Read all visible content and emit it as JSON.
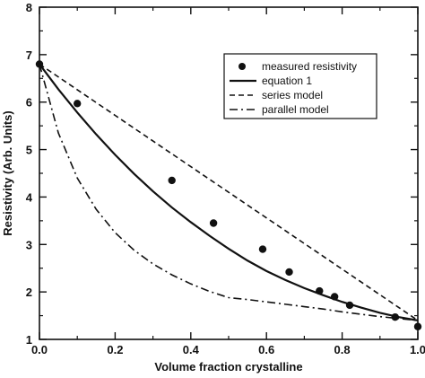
{
  "chart_data": {
    "type": "scatter",
    "title": "",
    "xlabel": "Volume fraction crystalline",
    "ylabel": "Resistivity (Arb. Units)",
    "xlim": [
      0.0,
      1.0
    ],
    "ylim": [
      1,
      8
    ],
    "xticks": [
      0.0,
      0.2,
      0.4,
      0.6,
      0.8,
      1.0
    ],
    "xtick_labels": [
      "0.0",
      "0.2",
      "0.4",
      "0.6",
      "0.8",
      "1.0"
    ],
    "yticks": [
      1,
      2,
      3,
      4,
      5,
      6,
      7,
      8
    ],
    "ytick_labels": [
      "1",
      "2",
      "3",
      "4",
      "5",
      "6",
      "7",
      "8"
    ],
    "grid": false,
    "legend_position": "top-right",
    "series": [
      {
        "name": "measured resistivity",
        "kind": "points",
        "marker": "filled-circle",
        "x": [
          0.0,
          0.1,
          0.35,
          0.46,
          0.59,
          0.66,
          0.74,
          0.78,
          0.82,
          0.94,
          1.0
        ],
        "y": [
          6.8,
          5.97,
          4.35,
          3.45,
          2.9,
          2.42,
          2.02,
          1.9,
          1.72,
          1.47,
          1.27
        ]
      },
      {
        "name": "equation 1",
        "kind": "line",
        "style": "solid",
        "x": [
          0.0,
          0.05,
          0.1,
          0.15,
          0.2,
          0.25,
          0.3,
          0.35,
          0.4,
          0.45,
          0.5,
          0.55,
          0.6,
          0.65,
          0.7,
          0.75,
          0.8,
          0.85,
          0.9,
          0.95,
          1.0
        ],
        "y": [
          6.8,
          6.27,
          5.78,
          5.32,
          4.89,
          4.49,
          4.12,
          3.78,
          3.47,
          3.18,
          2.91,
          2.66,
          2.44,
          2.25,
          2.08,
          1.93,
          1.79,
          1.67,
          1.56,
          1.47,
          1.4
        ]
      },
      {
        "name": "series model",
        "kind": "line",
        "style": "dashed",
        "x": [
          0.0,
          0.2,
          0.4,
          0.6,
          0.8,
          1.0
        ],
        "y": [
          6.8,
          5.72,
          4.64,
          3.56,
          2.48,
          1.4
        ]
      },
      {
        "name": "parallel model",
        "kind": "line",
        "style": "dash-dot",
        "x": [
          0.0,
          0.05,
          0.1,
          0.15,
          0.2,
          0.25,
          0.3,
          0.35,
          0.4,
          0.45,
          0.5,
          0.55,
          0.6,
          0.65,
          0.7,
          0.75,
          0.8,
          0.85,
          0.9,
          0.95,
          1.0
        ],
        "y": [
          6.8,
          5.35,
          4.4,
          3.74,
          3.25,
          2.88,
          2.59,
          2.36,
          2.17,
          2.01,
          1.88,
          1.84,
          1.79,
          1.74,
          1.69,
          1.64,
          1.58,
          1.53,
          1.48,
          1.44,
          1.4
        ]
      }
    ],
    "colors": {
      "ink": "#111111",
      "background": "#ffffff"
    }
  }
}
